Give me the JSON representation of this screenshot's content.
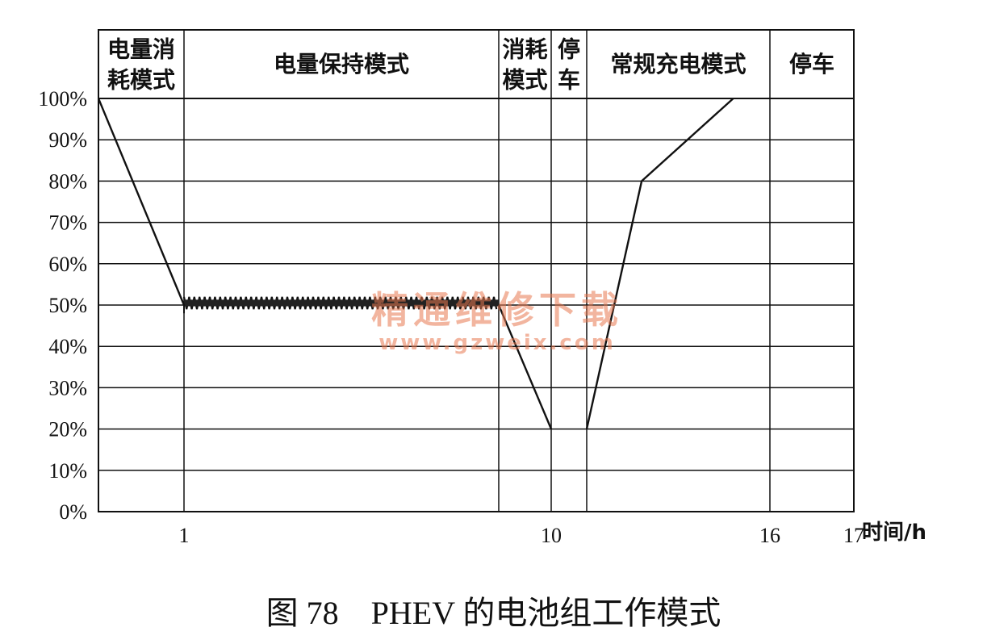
{
  "chart_data": {
    "type": "line",
    "xlabel": "时间/h",
    "ylabel": "",
    "x_ticks": [
      "1",
      "10",
      "16",
      "17"
    ],
    "y_ticks": [
      "100%",
      "90%",
      "80%",
      "70%",
      "60%",
      "50%",
      "40%",
      "30%",
      "20%",
      "10%",
      "0%"
    ],
    "ylim": [
      0,
      100
    ],
    "grid": true,
    "modes": [
      {
        "label": "电量消耗模式"
      },
      {
        "label": "电量保持模式"
      },
      {
        "label": "消耗模式"
      },
      {
        "label": "停车"
      },
      {
        "label": "常规充电模式"
      },
      {
        "label": "停车"
      }
    ],
    "soc_curve": [
      {
        "x": 0,
        "y": 100
      },
      {
        "x": 1,
        "y": 50
      },
      {
        "x": 8,
        "y": 50
      },
      {
        "x": 10,
        "y": 20
      },
      {
        "x": 11,
        "y": 20
      },
      {
        "x": 12.5,
        "y": 80
      },
      {
        "x": 15,
        "y": 100
      },
      {
        "x": 16,
        "y": 100
      }
    ],
    "sustain_band": {
      "x_start": 1,
      "x_end": 8,
      "y_min": 49,
      "y_max": 52
    }
  },
  "caption": "图 78　PHEV 的电池组工作模式",
  "watermark": {
    "line1": "精通维修下载",
    "line2": "www.gzweix.com"
  }
}
